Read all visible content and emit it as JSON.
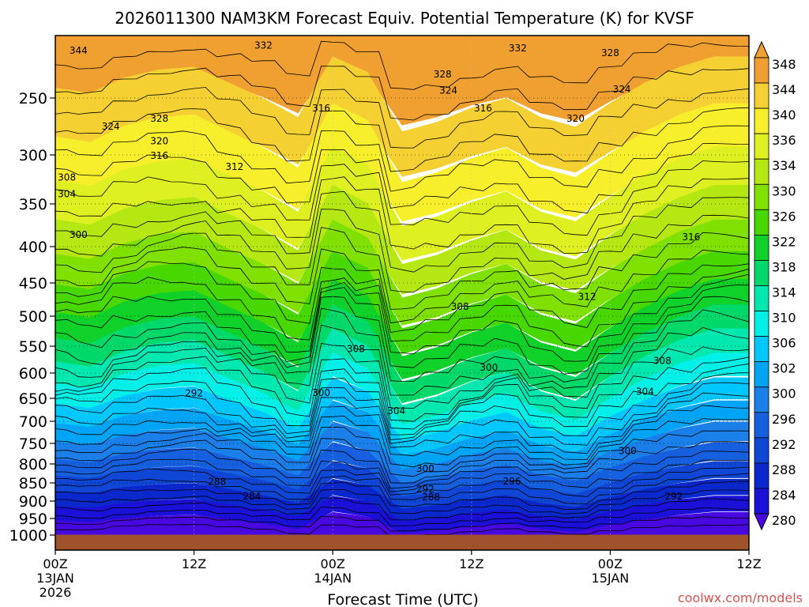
{
  "chart_data": {
    "type": "heatmap",
    "title": "2026011300 NAM3KM Forecast Equiv. Potential Temperature (K) for KVSF",
    "xlabel": "Forecast Time (UTC)",
    "ylabel": "",
    "credit": "coolwx.com/models",
    "x_hours": [
      0,
      12,
      24,
      36,
      48,
      60
    ],
    "x_ticks": [
      {
        "label": "00Z",
        "date": "13JAN",
        "year": "2026"
      },
      {
        "label": "12Z",
        "date": "",
        "year": ""
      },
      {
        "label": "00Z",
        "date": "14JAN",
        "year": ""
      },
      {
        "label": "12Z",
        "date": "",
        "year": ""
      },
      {
        "label": "00Z",
        "date": "15JAN",
        "year": ""
      },
      {
        "label": "12Z",
        "date": "",
        "year": ""
      }
    ],
    "y_ticks": [
      "250",
      "300",
      "350",
      "400",
      "450",
      "500",
      "550",
      "600",
      "650",
      "700",
      "750",
      "800",
      "850",
      "900",
      "950",
      "1000"
    ],
    "y_values": [
      250,
      300,
      350,
      400,
      450,
      500,
      550,
      600,
      650,
      700,
      750,
      800,
      850,
      900,
      950,
      1000
    ],
    "ylim": [
      200,
      1020
    ],
    "surface_pressure_hpa": 975,
    "colorbar_levels": [
      348,
      344,
      340,
      336,
      334,
      330,
      326,
      322,
      318,
      314,
      310,
      306,
      302,
      300,
      296,
      292,
      288,
      284,
      280
    ],
    "colorbar_colors": [
      "#f0a030",
      "#f5d033",
      "#f7ee2c",
      "#dff022",
      "#b5e812",
      "#80e000",
      "#48d800",
      "#10d02a",
      "#00d86a",
      "#00e8b0",
      "#00f0e8",
      "#00c8ff",
      "#00a4f5",
      "#1a7fe8",
      "#1660e0",
      "#0f46d6",
      "#0a28cc",
      "#1b10d8",
      "#4808e0"
    ],
    "contour_labels": [
      {
        "text": "344",
        "hour": 2.0,
        "p": 212
      },
      {
        "text": "332",
        "hour": 18.0,
        "p": 208
      },
      {
        "text": "332",
        "hour": 40.0,
        "p": 210
      },
      {
        "text": "328",
        "hour": 48.0,
        "p": 214
      },
      {
        "text": "328",
        "hour": 33.5,
        "p": 231
      },
      {
        "text": "324",
        "hour": 34.0,
        "p": 244
      },
      {
        "text": "324",
        "hour": 49.0,
        "p": 243
      },
      {
        "text": "328",
        "hour": 9.0,
        "p": 268
      },
      {
        "text": "324",
        "hour": 4.8,
        "p": 275
      },
      {
        "text": "316",
        "hour": 23.0,
        "p": 259
      },
      {
        "text": "316",
        "hour": 37.0,
        "p": 259
      },
      {
        "text": "320",
        "hour": 45.0,
        "p": 268
      },
      {
        "text": "320",
        "hour": 9.0,
        "p": 288
      },
      {
        "text": "316",
        "hour": 9.0,
        "p": 301
      },
      {
        "text": "312",
        "hour": 15.5,
        "p": 312
      },
      {
        "text": "308",
        "hour": 1.0,
        "p": 323
      },
      {
        "text": "304",
        "hour": 1.0,
        "p": 340
      },
      {
        "text": "300",
        "hour": 2.0,
        "p": 386
      },
      {
        "text": "316",
        "hour": 55.0,
        "p": 389
      },
      {
        "text": "312",
        "hour": 46.0,
        "p": 471
      },
      {
        "text": "308",
        "hour": 35.0,
        "p": 486
      },
      {
        "text": "308",
        "hour": 26.0,
        "p": 555
      },
      {
        "text": "308",
        "hour": 52.5,
        "p": 577
      },
      {
        "text": "300",
        "hour": 37.5,
        "p": 590
      },
      {
        "text": "292",
        "hour": 12.0,
        "p": 640
      },
      {
        "text": "300",
        "hour": 23.0,
        "p": 639
      },
      {
        "text": "304",
        "hour": 51.0,
        "p": 637
      },
      {
        "text": "304",
        "hour": 29.5,
        "p": 678
      },
      {
        "text": "300",
        "hour": 49.5,
        "p": 768
      },
      {
        "text": "300",
        "hour": 32.0,
        "p": 813
      },
      {
        "text": "288",
        "hour": 14.0,
        "p": 847
      },
      {
        "text": "296",
        "hour": 39.5,
        "p": 846
      },
      {
        "text": "292",
        "hour": 32.0,
        "p": 867
      },
      {
        "text": "284",
        "hour": 17.0,
        "p": 887
      },
      {
        "text": "292",
        "hour": 53.5,
        "p": 887
      },
      {
        "text": "288",
        "hour": 32.5,
        "p": 889
      }
    ]
  }
}
